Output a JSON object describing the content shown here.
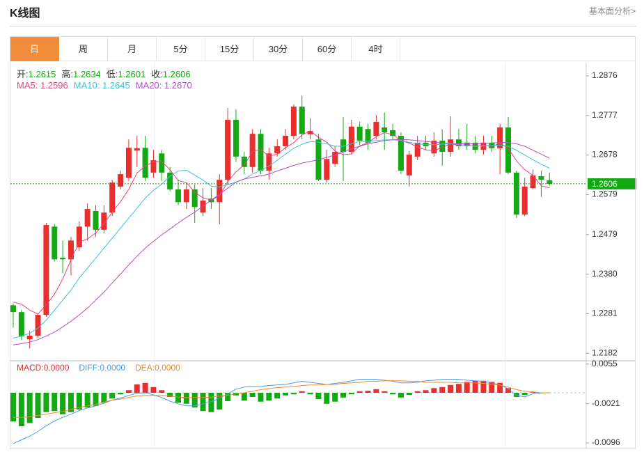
{
  "header": {
    "title": "K线图",
    "link": "基本面分析>"
  },
  "tabs": [
    "日",
    "周",
    "月",
    "5分",
    "15分",
    "30分",
    "60分",
    "4时"
  ],
  "chart_data": {
    "type": "candlestick",
    "ohlc_names": [
      "开:",
      "高:",
      "低:",
      "收:"
    ],
    "up_color": "#e92e2e",
    "down_color": "#14a814",
    "open": [
      1.2302,
      1.2285,
      1.2217,
      1.2226,
      1.2278,
      1.2499,
      1.2421,
      1.2417,
      1.2447,
      1.2499,
      1.2538,
      1.2491,
      1.2534,
      1.2599,
      1.2621,
      1.2689,
      1.2696,
      1.2634,
      1.2682,
      1.2634,
      1.2592,
      1.256,
      1.2592,
      1.2534,
      1.2569,
      1.256,
      1.2616,
      1.2766,
      1.2674,
      1.2648,
      1.2731,
      1.2639,
      1.2682,
      1.27,
      1.2726,
      1.2799,
      1.273,
      1.2717,
      1.2616,
      1.2656,
      1.2717,
      1.2686,
      1.2749,
      1.2743,
      1.2726,
      1.2747,
      1.274,
      1.2726,
      1.2627,
      1.2674,
      1.2709,
      1.2682,
      1.2714,
      1.2686,
      1.2717,
      1.2709,
      1.2709,
      1.2691,
      1.2709,
      1.2695,
      1.2747,
      1.2634,
      1.2529,
      1.2595,
      1.2625,
      1.2615
    ],
    "high": [
      1.2307,
      1.229,
      1.2238,
      1.2281,
      1.2508,
      1.2505,
      1.2464,
      1.2473,
      1.2512,
      1.2557,
      1.2552,
      1.2552,
      1.2616,
      1.2639,
      1.2717,
      1.2726,
      1.2726,
      1.2691,
      1.2691,
      1.2648,
      1.2616,
      1.2609,
      1.2604,
      1.2595,
      1.2595,
      1.263,
      1.2796,
      1.2792,
      1.2686,
      1.2743,
      1.2743,
      1.2696,
      1.2717,
      1.2743,
      1.2805,
      1.2827,
      1.277,
      1.2731,
      1.2691,
      1.27,
      1.2773,
      1.2766,
      1.2761,
      1.2756,
      1.2778,
      1.2784,
      1.2756,
      1.2735,
      1.2688,
      1.2726,
      1.2726,
      1.2735,
      1.2743,
      1.2775,
      1.2743,
      1.2756,
      1.2726,
      1.2726,
      1.2726,
      1.2756,
      1.2773,
      1.2639,
      1.2621,
      1.2642,
      1.2639,
      1.2634
    ],
    "low": [
      1.2246,
      1.2215,
      1.2194,
      1.222,
      1.2273,
      1.2412,
      1.2382,
      1.2377,
      1.2438,
      1.2464,
      1.2473,
      1.2482,
      1.2525,
      1.2592,
      1.2613,
      1.2648,
      1.2613,
      1.2621,
      1.2613,
      1.2587,
      1.2552,
      1.2543,
      1.2508,
      1.2525,
      1.2543,
      1.2505,
      1.2604,
      1.2661,
      1.263,
      1.2634,
      1.263,
      1.2616,
      1.2674,
      1.2691,
      1.2717,
      1.2717,
      1.2717,
      1.2613,
      1.2609,
      1.2648,
      1.2613,
      1.2679,
      1.2703,
      1.2691,
      1.2717,
      1.2691,
      1.2717,
      1.263,
      1.2599,
      1.2665,
      1.2691,
      1.2674,
      1.2651,
      1.2674,
      1.2691,
      1.2691,
      1.2682,
      1.2679,
      1.2686,
      1.263,
      1.263,
      1.252,
      1.2525,
      1.2592,
      1.2573,
      1.2601
    ],
    "close": [
      1.2285,
      1.2224,
      1.2226,
      1.2278,
      1.2503,
      1.2417,
      1.2417,
      1.2464,
      1.2499,
      1.2543,
      1.2491,
      1.2534,
      1.2609,
      1.263,
      1.2696,
      1.2695,
      1.2621,
      1.2665,
      1.2634,
      1.2592,
      1.256,
      1.2592,
      1.2548,
      1.2564,
      1.256,
      1.2616,
      1.2766,
      1.2674,
      1.2648,
      1.2731,
      1.2639,
      1.2682,
      1.27,
      1.2726,
      1.2799,
      1.2731,
      1.2738,
      1.2616,
      1.2668,
      1.2686,
      1.2686,
      1.2749,
      1.2714,
      1.2709,
      1.2761,
      1.2735,
      1.2726,
      1.2639,
      1.2679,
      1.2709,
      1.27,
      1.2714,
      1.2686,
      1.2717,
      1.27,
      1.27,
      1.2691,
      1.2709,
      1.2695,
      1.2747,
      1.2634,
      1.2529,
      1.2599,
      1.2627,
      1.2616,
      1.2606
    ],
    "series": [
      {
        "name": "MA5:",
        "color": "#e8457a",
        "last_label": "1.2596",
        "values": [
          1.231,
          1.2305,
          1.229,
          1.228,
          1.2303,
          1.233,
          1.2368,
          1.2416,
          1.246,
          1.2468,
          1.2483,
          1.2506,
          1.2535,
          1.2561,
          1.2592,
          1.2633,
          1.265,
          1.2661,
          1.2662,
          1.2641,
          1.2614,
          1.2609,
          1.2585,
          1.2571,
          1.2565,
          1.2576,
          1.2611,
          1.2636,
          1.2653,
          1.2687,
          1.2692,
          1.2675,
          1.268,
          1.2696,
          1.2709,
          1.2728,
          1.2739,
          1.2722,
          1.271,
          1.2688,
          1.2679,
          1.2681,
          1.2701,
          1.2709,
          1.2724,
          1.2734,
          1.2729,
          1.2714,
          1.2708,
          1.2698,
          1.2691,
          1.2688,
          1.2698,
          1.2705,
          1.2703,
          1.2703,
          1.2699,
          1.2703,
          1.2699,
          1.2708,
          1.2695,
          1.2663,
          1.2641,
          1.2627,
          1.2601,
          1.2596
        ]
      },
      {
        "name": "MA10:",
        "color": "#3cc3d6",
        "last_label": "1.2645",
        "values": [
          1.222,
          1.2225,
          1.2232,
          1.2245,
          1.2265,
          1.229,
          1.2315,
          1.234,
          1.237,
          1.2395,
          1.242,
          1.2445,
          1.247,
          1.2495,
          1.252,
          1.2545,
          1.257,
          1.259,
          1.2605,
          1.2625,
          1.2638,
          1.264,
          1.2628,
          1.2615,
          1.26,
          1.2598,
          1.2604,
          1.261,
          1.2618,
          1.263,
          1.264,
          1.265,
          1.2665,
          1.268,
          1.2695,
          1.2705,
          1.2712,
          1.271,
          1.2706,
          1.27,
          1.27,
          1.2706,
          1.2712,
          1.2712,
          1.2714,
          1.2716,
          1.2716,
          1.2714,
          1.271,
          1.2706,
          1.2704,
          1.2704,
          1.2705,
          1.2706,
          1.2704,
          1.2702,
          1.27,
          1.2701,
          1.2702,
          1.2703,
          1.27,
          1.269,
          1.2678,
          1.2666,
          1.2655,
          1.2645
        ]
      },
      {
        "name": "MA20:",
        "color": "#b04fc6",
        "last_label": "1.2670",
        "values": [
          1.2203,
          1.2206,
          1.221,
          1.2216,
          1.2225,
          1.2235,
          1.2248,
          1.2262,
          1.2278,
          1.2295,
          1.2315,
          1.2335,
          1.2358,
          1.238,
          1.2403,
          1.2425,
          1.2445,
          1.2462,
          1.2478,
          1.2493,
          1.2508,
          1.2522,
          1.2535,
          1.255,
          1.2565,
          1.258,
          1.2595,
          1.261,
          1.2618,
          1.2622,
          1.2626,
          1.263,
          1.2638,
          1.2645,
          1.2652,
          1.2658,
          1.2662,
          1.2666,
          1.2672,
          1.2678,
          1.2686,
          1.2694,
          1.27,
          1.2706,
          1.271,
          1.2714,
          1.2716,
          1.2717,
          1.2716,
          1.2714,
          1.2712,
          1.271,
          1.2708,
          1.2707,
          1.2706,
          1.2706,
          1.2706,
          1.2707,
          1.2708,
          1.2709,
          1.2709,
          1.2706,
          1.27,
          1.269,
          1.268,
          1.267
        ]
      }
    ],
    "ylim": [
      1.2165,
      1.2909
    ],
    "yticks": [
      1.2876,
      1.2777,
      1.2678,
      1.2579,
      1.2479,
      {
        "value": 1.238,
        "label": "1.2380"
      },
      1.2281,
      1.2182
    ],
    "last_color": "#14a814",
    "macd": {
      "ylim": [
        -0.0108,
        0.006
      ],
      "yticks": [
        0.0055,
        -0.0021,
        -0.0096
      ],
      "bars": {
        "name": "MACD:",
        "last_label": "0.0000",
        "up_color": "#e92e2e",
        "down_color": "#14a814",
        "values": [
          -0.0055,
          -0.0064,
          -0.0058,
          -0.0048,
          -0.0037,
          -0.0035,
          -0.0041,
          -0.0037,
          -0.0032,
          -0.0028,
          -0.0025,
          -0.0019,
          -0.0011,
          -0.0003,
          0.0005,
          0.0016,
          0.0019,
          0.0011,
          0.0005,
          -0.0008,
          -0.0019,
          -0.0021,
          -0.0028,
          -0.0035,
          -0.0037,
          -0.0032,
          -0.0016,
          -0.0005,
          -0.0015,
          -0.0008,
          -0.0017,
          -0.0015,
          -0.0011,
          -0.0005,
          -0.0003,
          0.0003,
          -0.0003,
          -0.0012,
          -0.0021,
          -0.0017,
          -0.0009,
          -0.0003,
          0.0003,
          0.0004,
          0.0007,
          0.0003,
          -0.0003,
          -0.0009,
          -0.0004,
          0.0003,
          0.0005,
          0.0009,
          0.0011,
          0.0015,
          0.0017,
          0.0021,
          0.0023,
          0.0023,
          0.0021,
          0.0019,
          0.0009,
          -0.0008,
          -0.0004,
          0.0001,
          -0.0001,
          0
        ]
      },
      "series": [
        {
          "name": "DIFF:",
          "color": "#4a9de6",
          "last_label": "0.0000",
          "values": [
            -0.0097,
            -0.009,
            -0.0083,
            -0.0074,
            -0.0063,
            -0.0054,
            -0.0047,
            -0.0041,
            -0.0034,
            -0.0029,
            -0.0025,
            -0.002,
            -0.0014,
            -0.001,
            -0.0005,
            -0.0001,
            0,
            -0.0004,
            -0.0009,
            -0.0016,
            -0.0021,
            -0.0025,
            -0.0025,
            -0.0021,
            -0.0017,
            -0.001,
            -0.0002,
            0.0007,
            0.0011,
            0.0012,
            0.0012,
            0.0014,
            0.0015,
            0.0016,
            0.0019,
            0.0022,
            0.002,
            0.0018,
            0.0016,
            0.0018,
            0.002,
            0.0023,
            0.0026,
            0.0026,
            0.0026,
            0.0024,
            0.0022,
            0.0019,
            0.0019,
            0.002,
            0.0023,
            0.0024,
            0.0026,
            0.0026,
            0.0026,
            0.0024,
            0.0023,
            0.0022,
            0.0019,
            0.0015,
            0.0008,
            -0.0005,
            -0.0008,
            -0.0002,
            0,
            0
          ]
        },
        {
          "name": "DEA:",
          "color": "#f08a24",
          "last_label": "0.0000",
          "values": [
            -0.0047,
            -0.0047,
            -0.0046,
            -0.0043,
            -0.0041,
            -0.0038,
            -0.0036,
            -0.0032,
            -0.0028,
            -0.0025,
            -0.0022,
            -0.0018,
            -0.0014,
            -0.0012,
            -0.0009,
            -0.0006,
            -0.0005,
            -0.0005,
            -0.0005,
            -0.0006,
            -0.0008,
            -0.0009,
            -0.0009,
            -0.0009,
            -0.0008,
            -0.0006,
            -0.0005,
            -0.0002,
            0,
            0.0003,
            0.0006,
            0.0008,
            0.001,
            0.0011,
            0.0012,
            0.0014,
            0.0015,
            0.0015,
            0.0016,
            0.0016,
            0.0018,
            0.0019,
            0.002,
            0.0022,
            0.0022,
            0.0023,
            0.0023,
            0.0023,
            0.0022,
            0.0022,
            0.002,
            0.002,
            0.002,
            0.002,
            0.0019,
            0.0019,
            0.0019,
            0.0018,
            0.0016,
            0.0015,
            0.0011,
            0.0006,
            0.0003,
            0.0002,
            0,
            0
          ]
        }
      ]
    }
  }
}
